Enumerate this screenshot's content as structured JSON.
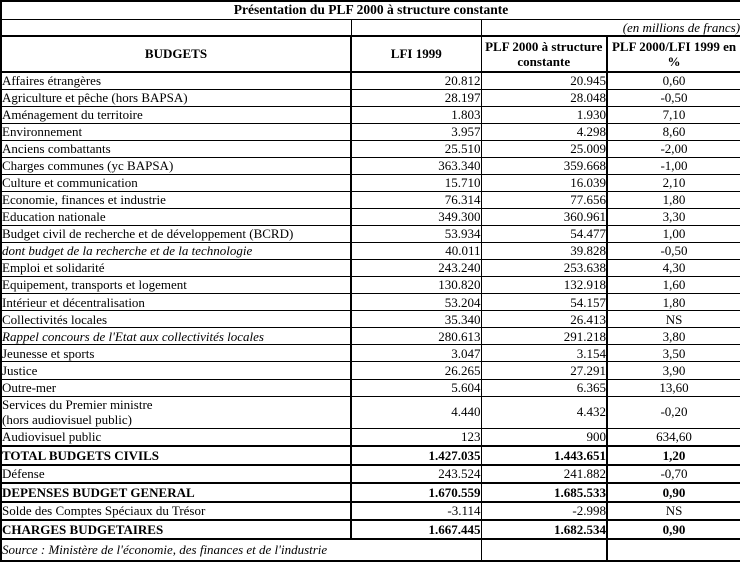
{
  "title": "Présentation du PLF 2000 à structure constante",
  "unit_note": "(en millions de francs)",
  "table": {
    "columns": [
      "BUDGETS",
      "LFI 1999",
      "PLF 2000 à structure constante",
      "PLF 2000/LFI 1999 en %"
    ],
    "rows": [
      {
        "label": "Affaires étrangères",
        "lfi_1999": "20.812",
        "plf_2000": "20.945",
        "pct": "0,60"
      },
      {
        "label": "Agriculture et pêche (hors BAPSA)",
        "lfi_1999": "28.197",
        "plf_2000": "28.048",
        "pct": "-0,50"
      },
      {
        "label": "Aménagement du territoire",
        "lfi_1999": "1.803",
        "plf_2000": "1.930",
        "pct": "7,10"
      },
      {
        "label": "Environnement",
        "lfi_1999": "3.957",
        "plf_2000": "4.298",
        "pct": "8,60"
      },
      {
        "label": "Anciens combattants",
        "lfi_1999": "25.510",
        "plf_2000": "25.009",
        "pct": "-2,00"
      },
      {
        "label": "Charges communes (yc BAPSA)",
        "lfi_1999": "363.340",
        "plf_2000": "359.668",
        "pct": "-1,00"
      },
      {
        "label": "Culture et communication",
        "lfi_1999": "15.710",
        "plf_2000": "16.039",
        "pct": "2,10"
      },
      {
        "label": "Economie, finances et industrie",
        "lfi_1999": "76.314",
        "plf_2000": "77.656",
        "pct": "1,80"
      },
      {
        "label": "Education nationale",
        "lfi_1999": "349.300",
        "plf_2000": "360.961",
        "pct": "3,30"
      },
      {
        "label": "Budget civil de recherche et de développement (BCRD)",
        "lfi_1999": "53.934",
        "plf_2000": "54.477",
        "pct": "1,00"
      },
      {
        "label": "dont budget de la recherche et de la technologie",
        "lfi_1999": "40.011",
        "plf_2000": "39.828",
        "pct": "-0,50",
        "label_italic": true
      },
      {
        "label": "Emploi et solidarité",
        "lfi_1999": "243.240",
        "plf_2000": "253.638",
        "pct": "4,30"
      },
      {
        "label": "Equipement, transports et logement",
        "lfi_1999": "130.820",
        "plf_2000": "132.918",
        "pct": "1,60"
      },
      {
        "label": "Intérieur et décentralisation",
        "lfi_1999": "53.204",
        "plf_2000": "54.157",
        "pct": "1,80"
      },
      {
        "label": "Collectivités locales",
        "lfi_1999": "35.340",
        "plf_2000": "26.413",
        "pct": "NS"
      },
      {
        "label": "Rappel concours de l'Etat aux collectivités locales",
        "lfi_1999": "280.613",
        "plf_2000": "291.218",
        "pct": "3,80",
        "label_italic": true
      },
      {
        "label": "Jeunesse et sports",
        "lfi_1999": "3.047",
        "plf_2000": "3.154",
        "pct": "3,50"
      },
      {
        "label": "Justice",
        "lfi_1999": "26.265",
        "plf_2000": "27.291",
        "pct": "3,90"
      },
      {
        "label": "Outre-mer",
        "lfi_1999": "5.604",
        "plf_2000": "6.365",
        "pct": "13,60"
      },
      {
        "label": "Services du Premier ministre\n(hors audiovisuel public)",
        "lfi_1999": "4.440",
        "plf_2000": "4.432",
        "pct": "-0,20"
      },
      {
        "label": "Audiovisuel public",
        "lfi_1999": "123",
        "plf_2000": "900",
        "pct": "634,60"
      },
      {
        "label": "TOTAL BUDGETS CIVILS",
        "lfi_1999": "1.427.035",
        "plf_2000": "1.443.651",
        "pct": "1,20",
        "bold": true
      },
      {
        "label": "Défense",
        "lfi_1999": "243.524",
        "plf_2000": "241.882",
        "pct": "-0,70"
      },
      {
        "label": "DEPENSES BUDGET GENERAL",
        "lfi_1999": "1.670.559",
        "plf_2000": "1.685.533",
        "pct": "0,90",
        "bold": true
      },
      {
        "label": "Solde des Comptes Spéciaux du Trésor",
        "lfi_1999": "-3.114",
        "plf_2000": "-2.998",
        "pct": "NS"
      },
      {
        "label": "CHARGES BUDGETAIRES",
        "lfi_1999": "1.667.445",
        "plf_2000": "1.682.534",
        "pct": "0,90",
        "bold": true
      }
    ],
    "source": "Source : Ministère de l'économie, des finances et de l'industrie"
  }
}
